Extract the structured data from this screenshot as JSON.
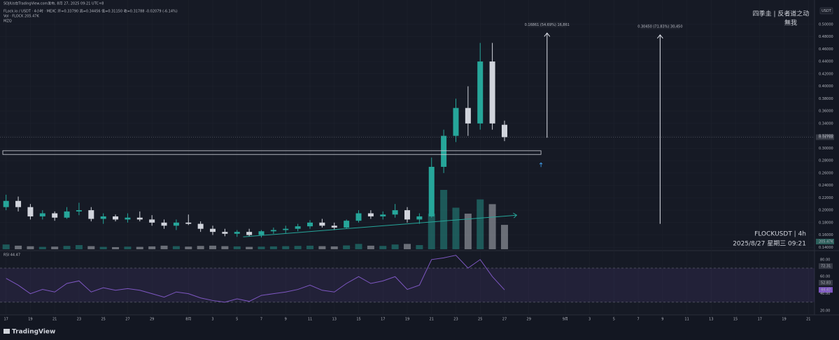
{
  "chart_data": {
    "type": "candlestick",
    "legend_lines": [
      "SOJlUs在TradingView.com发布, 8月 27, 2025 09:21 UTC+8",
      "FLock.io / USDT · 4小时 · MEXC  开=0.33790  高=0.34456  低=0.31150  收=0.31788  -0.02079 (-6.14%)",
      "Vol · FLOCK  205.47K",
      "MZQ"
    ],
    "watermark": [
      "四季圭 | 反者道之动",
      "無我"
    ],
    "symbol_label": "FLOCKUSDT | 4h",
    "timestamp": "2025/8/27 星期三 09:21",
    "brand": "TradingView",
    "currency": "USDT",
    "up_color": "#26a69a",
    "down_color": "#d1d4dc",
    "categories": [
      "17",
      null,
      "19",
      null,
      "21",
      null,
      "23",
      null,
      "25",
      null,
      "27",
      null,
      "29",
      null,
      null,
      "8月",
      null,
      "3",
      null,
      "5",
      null,
      "7",
      null,
      "9",
      null,
      "11",
      null,
      "13",
      null,
      "15",
      null,
      "17",
      null,
      "19",
      null,
      "21",
      null,
      "23",
      null,
      "25",
      null,
      "27",
      null,
      "29",
      null,
      null,
      "9月",
      null,
      "3",
      null,
      "5",
      null,
      "7",
      null,
      "9",
      null,
      "11",
      null,
      "13",
      null,
      "15",
      null,
      "17",
      null,
      "19",
      null,
      "21"
    ],
    "open": [
      0.205,
      0.215,
      0.205,
      0.19,
      0.195,
      0.188,
      0.198,
      0.2,
      0.186,
      0.19,
      0.185,
      0.188,
      0.185,
      0.18,
      0.175,
      0.18,
      0.178,
      0.17,
      0.165,
      0.162,
      0.165,
      0.16,
      0.166,
      0.168,
      0.17,
      0.174,
      0.18,
      0.175,
      0.172,
      0.183,
      0.195,
      0.19,
      0.193,
      0.2,
      0.185,
      0.19,
      0.27,
      0.32,
      0.365,
      0.34,
      0.44,
      0.3379,
      null,
      null,
      null,
      null,
      null,
      null,
      null,
      null,
      null,
      null,
      null,
      null,
      null,
      null,
      null,
      null,
      null,
      null,
      null,
      null,
      null,
      null,
      null,
      null,
      null
    ],
    "high": [
      0.225,
      0.222,
      0.21,
      0.2,
      0.198,
      0.205,
      0.212,
      0.205,
      0.195,
      0.193,
      0.195,
      0.198,
      0.192,
      0.185,
      0.185,
      0.193,
      0.182,
      0.175,
      0.17,
      0.168,
      0.17,
      0.168,
      0.172,
      0.175,
      0.178,
      0.184,
      0.186,
      0.18,
      0.185,
      0.2,
      0.2,
      0.198,
      0.21,
      0.205,
      0.195,
      0.285,
      0.33,
      0.38,
      0.4,
      0.47,
      0.47,
      0.34456,
      null,
      null,
      null,
      null,
      null,
      null,
      null,
      null,
      null,
      null,
      null,
      null,
      null,
      null,
      null,
      null,
      null,
      null,
      null,
      null,
      null,
      null,
      null,
      null,
      null
    ],
    "low": [
      0.2,
      0.198,
      0.185,
      0.185,
      0.183,
      0.186,
      0.192,
      0.182,
      0.178,
      0.182,
      0.18,
      0.182,
      0.175,
      0.17,
      0.168,
      0.176,
      0.165,
      0.16,
      0.158,
      0.157,
      0.158,
      0.156,
      0.162,
      0.163,
      0.166,
      0.17,
      0.172,
      0.168,
      0.17,
      0.18,
      0.186,
      0.185,
      0.188,
      0.18,
      0.178,
      0.188,
      0.26,
      0.31,
      0.32,
      0.33,
      0.33,
      0.3115,
      null,
      null,
      null,
      null,
      null,
      null,
      null,
      null,
      null,
      null,
      null,
      null,
      null,
      null,
      null,
      null,
      null,
      null,
      null,
      null,
      null,
      null,
      null,
      null,
      null
    ],
    "close": [
      0.215,
      0.205,
      0.19,
      0.195,
      0.188,
      0.198,
      0.2,
      0.186,
      0.19,
      0.185,
      0.188,
      0.185,
      0.18,
      0.175,
      0.18,
      0.178,
      0.17,
      0.165,
      0.162,
      0.165,
      0.16,
      0.166,
      0.168,
      0.17,
      0.174,
      0.18,
      0.175,
      0.172,
      0.183,
      0.195,
      0.19,
      0.193,
      0.2,
      0.185,
      0.19,
      0.27,
      0.32,
      0.365,
      0.34,
      0.44,
      0.34,
      0.31788,
      null,
      null,
      null,
      null,
      null,
      null,
      null,
      null,
      null,
      null,
      null,
      null,
      null,
      null,
      null,
      null,
      null,
      null,
      null,
      null,
      null,
      null,
      null,
      null,
      null
    ],
    "volume": [
      40,
      30,
      25,
      20,
      22,
      28,
      35,
      26,
      20,
      18,
      22,
      20,
      24,
      30,
      26,
      22,
      28,
      30,
      26,
      24,
      20,
      22,
      24,
      26,
      28,
      30,
      26,
      24,
      32,
      45,
      30,
      28,
      40,
      45,
      35,
      300,
      500,
      350,
      300,
      420,
      380,
      205.47,
      null,
      null,
      null,
      null,
      null,
      null,
      null,
      null,
      null,
      null,
      null,
      null,
      null,
      null,
      null,
      null,
      null,
      null,
      null,
      null,
      null,
      null,
      null,
      null,
      null
    ],
    "rsi": [
      58,
      50,
      40,
      45,
      42,
      52,
      55,
      42,
      47,
      44,
      46,
      44,
      40,
      36,
      42,
      40,
      35,
      32,
      30,
      34,
      31,
      38,
      40,
      42,
      45,
      50,
      44,
      42,
      52,
      60,
      52,
      55,
      60,
      45,
      50,
      80,
      82,
      85,
      70,
      80,
      60,
      44.47,
      null,
      null,
      null,
      null,
      null,
      null,
      null,
      null,
      null,
      null,
      null,
      null,
      null,
      null,
      null,
      null,
      null,
      null,
      null,
      null,
      null,
      null,
      null,
      null,
      null
    ],
    "ylim": [
      0.137,
      0.528
    ],
    "yticks": [
      {
        "value": 0.5,
        "label": "0.50000"
      },
      {
        "value": 0.48,
        "label": "0.48000"
      },
      {
        "value": 0.46,
        "label": "0.46000"
      },
      {
        "value": 0.44,
        "label": "0.44000"
      },
      {
        "value": 0.42,
        "label": "0.42000"
      },
      {
        "value": 0.4,
        "label": "0.40000"
      },
      {
        "value": 0.38,
        "label": "0.38000"
      },
      {
        "value": 0.36,
        "label": "0.36000"
      },
      {
        "value": 0.34,
        "label": "0.34000"
      },
      {
        "value": 0.32,
        "label": "0.32000"
      },
      {
        "value": 0.3,
        "label": "0.30000"
      },
      {
        "value": 0.28,
        "label": "0.28000"
      },
      {
        "value": 0.26,
        "label": "0.26000"
      },
      {
        "value": 0.24,
        "label": "0.24000"
      },
      {
        "value": 0.22,
        "label": "0.22000"
      },
      {
        "value": 0.2,
        "label": "0.20000"
      },
      {
        "value": 0.18,
        "label": "0.18000"
      },
      {
        "value": 0.16,
        "label": "0.16000"
      },
      {
        "value": 0.14,
        "label": "0.14000"
      }
    ],
    "last_price": {
      "value": 0.31788,
      "label": "0.31788"
    },
    "last_volume_label": "205.47K",
    "zone": {
      "low": 0.29,
      "high": 0.296
    },
    "trend_line": {
      "from": 0.157,
      "to": 0.192
    },
    "measures": [
      {
        "label": "0.16861 (54.69%) 16,861",
        "from": 0.317,
        "to": 0.486
      },
      {
        "label": "0.30450 (71.83%) 30,450",
        "from": 0.178,
        "to": 0.483
      }
    ],
    "rsi_title": "RSI 44.47",
    "rsi_ylim": [
      16,
      88
    ],
    "rsi_yticks": [
      {
        "value": 80,
        "label": "80.00"
      },
      {
        "value": 60,
        "label": "60.00"
      },
      {
        "value": 40,
        "label": "40.00"
      },
      {
        "value": 20,
        "label": "20.00"
      }
    ],
    "rsi_bands": [
      70,
      30
    ],
    "rsi_markers": [
      {
        "value": 72.31,
        "label": "72.31"
      },
      {
        "value": 52.83,
        "label": "52.83"
      },
      {
        "value": 44.47,
        "label": "44.47"
      }
    ],
    "rsi_color": "#7e57c2",
    "grid": true
  }
}
